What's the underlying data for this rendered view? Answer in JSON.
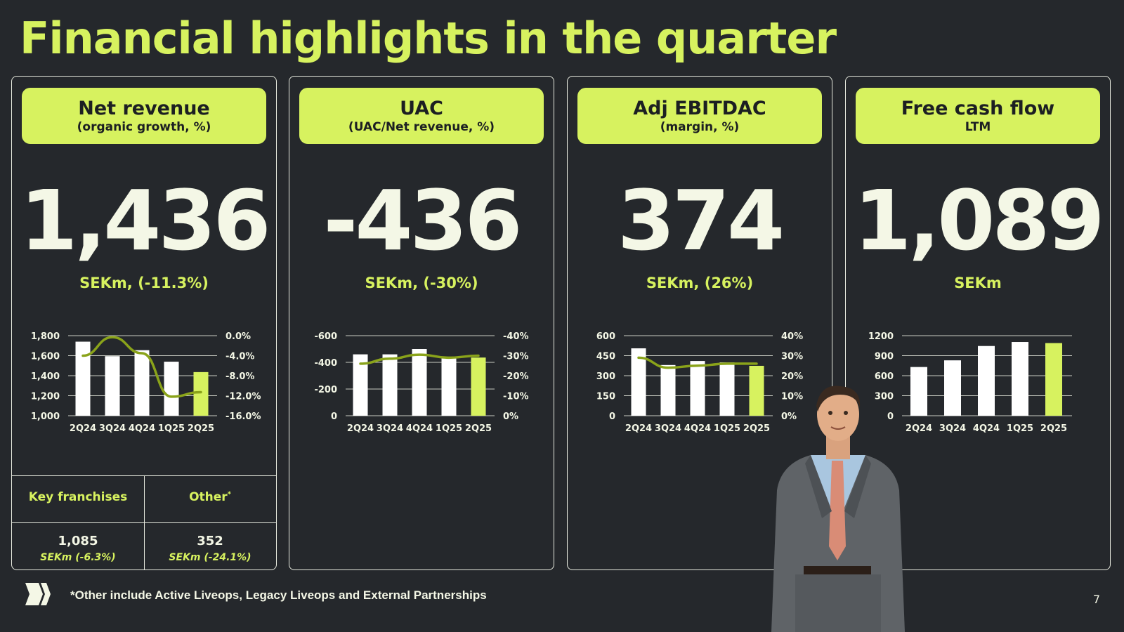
{
  "title": "Financial highlights in the quarter",
  "footnote": "*Other include Active Liveops, Legacy Liveops and External Partnerships",
  "page_number": "7",
  "colors": {
    "accent": "#d7f25f",
    "background": "#25282c",
    "bar": "#ffffff",
    "line": "#8aa31a"
  },
  "cards": [
    {
      "heading": "Net revenue",
      "subheading": "(organic growth, %)",
      "value": "1,436",
      "unit": "SEKm, (-11.3%)"
    },
    {
      "heading": "UAC",
      "subheading": "(UAC/Net revenue, %)",
      "value": "-436",
      "unit": "SEKm, (-30%)"
    },
    {
      "heading": "Adj EBITDAC",
      "subheading": "(margin, %)",
      "value": "374",
      "unit": "SEKm, (26%)"
    },
    {
      "heading": "Free cash flow",
      "subheading": "LTM",
      "value": "1,089",
      "unit": "SEKm"
    }
  ],
  "key_franchises": {
    "label": "Key franchises",
    "value": "1,085",
    "sub": "SEKm (-6.3%)"
  },
  "other": {
    "label": "Other",
    "label_sup": "*",
    "value": "352",
    "sub": "SEKm (-24.1%)"
  },
  "chart_data": [
    {
      "type": "bar",
      "categories": [
        "2Q24",
        "3Q24",
        "4Q24",
        "1Q25",
        "2Q25"
      ],
      "values": [
        1740,
        1595,
        1655,
        1540,
        1436
      ],
      "ylim": [
        1000,
        1800
      ],
      "yticks": [
        "1,800",
        "1,600",
        "1,400",
        "1,200",
        "1,000"
      ],
      "y2lim": [
        -16,
        0
      ],
      "y2ticks": [
        "0.0%",
        "-4.0%",
        "-8.0%",
        "-12.0%",
        "-16.0%"
      ],
      "line": [
        -4.0,
        -0.3,
        -3.5,
        -12.2,
        -11.3
      ]
    },
    {
      "type": "bar",
      "categories": [
        "2Q24",
        "3Q24",
        "4Q24",
        "1Q25",
        "2Q25"
      ],
      "values": [
        -460,
        -460,
        -500,
        -430,
        -436
      ],
      "ylim": [
        0,
        -600
      ],
      "yticks": [
        "-600",
        "-400",
        "-200",
        "0"
      ],
      "y2lim": [
        0,
        -40
      ],
      "y2ticks": [
        "-40%",
        "-30%",
        "-20%",
        "-10%",
        "0%"
      ],
      "line": [
        -26,
        -28.5,
        -30.5,
        -29,
        -30
      ]
    },
    {
      "type": "bar",
      "categories": [
        "2Q24",
        "3Q24",
        "4Q24",
        "1Q25",
        "2Q25"
      ],
      "values": [
        505,
        380,
        410,
        400,
        374
      ],
      "ylim": [
        0,
        600
      ],
      "yticks": [
        "600",
        "450",
        "300",
        "150",
        "0"
      ],
      "y2lim": [
        0,
        40
      ],
      "y2ticks": [
        "40%",
        "30%",
        "20%",
        "10%",
        "0%"
      ],
      "line": [
        29,
        24,
        25,
        26,
        26
      ]
    },
    {
      "type": "bar",
      "categories": [
        "2Q24",
        "3Q24",
        "4Q24",
        "1Q25",
        "2Q25"
      ],
      "values": [
        730,
        830,
        1045,
        1105,
        1089
      ],
      "ylim": [
        0,
        1200
      ],
      "yticks": [
        "1200",
        "900",
        "600",
        "300",
        "0"
      ]
    }
  ]
}
